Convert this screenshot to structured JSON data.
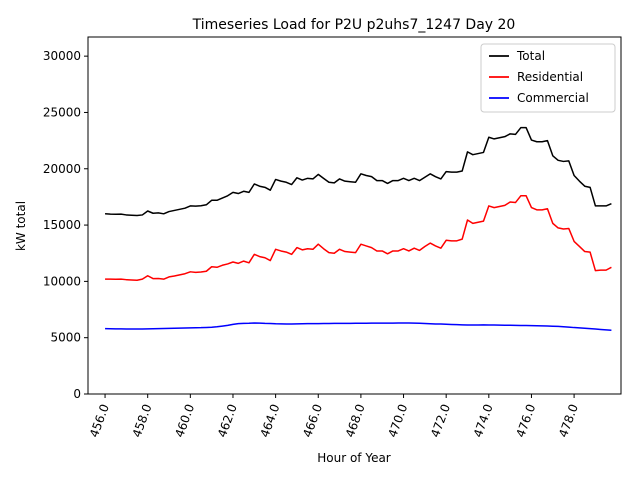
{
  "chart_data": {
    "type": "line",
    "title": "Timeseries Load for P2U p2uhs7_1247  Day 20",
    "xlabel": "Hour of Year",
    "ylabel": "kW total",
    "xlim": [
      455.2,
      480.2
    ],
    "ylim": [
      0,
      31700
    ],
    "x_start": 456.0,
    "x_step": 0.25,
    "x_ticks": [
      456,
      458,
      460,
      462,
      464,
      466,
      468,
      470,
      472,
      474,
      476,
      478
    ],
    "x_tick_labels": [
      "456.0",
      "458.0",
      "460.0",
      "462.0",
      "464.0",
      "466.0",
      "468.0",
      "470.0",
      "472.0",
      "474.0",
      "476.0",
      "478.0"
    ],
    "y_ticks": [
      0,
      5000,
      10000,
      15000,
      20000,
      25000,
      30000
    ],
    "y_tick_labels": [
      "0",
      "5000",
      "10000",
      "15000",
      "20000",
      "25000",
      "30000"
    ],
    "legend_position": "top-right",
    "series": [
      {
        "name": "Total",
        "color": "#000000",
        "values": [
          16000,
          15970,
          15960,
          15970,
          15900,
          15870,
          15850,
          15900,
          16250,
          16050,
          16080,
          16000,
          16200,
          16300,
          16400,
          16500,
          16700,
          16680,
          16720,
          16800,
          17200,
          17200,
          17400,
          17600,
          17900,
          17800,
          18000,
          17900,
          18650,
          18450,
          18350,
          18100,
          19050,
          18900,
          18800,
          18600,
          19200,
          19000,
          19150,
          19100,
          19500,
          19150,
          18800,
          18750,
          19100,
          18900,
          18850,
          18800,
          19550,
          19400,
          19300,
          18950,
          18950,
          18700,
          18950,
          18950,
          19150,
          18950,
          19150,
          18950,
          19250,
          19550,
          19300,
          19100,
          19750,
          19700,
          19700,
          19800,
          21500,
          21250,
          21350,
          21450,
          22800,
          22650,
          22750,
          22850,
          23100,
          23050,
          23650,
          23650,
          22550,
          22400,
          22400,
          22500,
          21150,
          20750,
          20650,
          20700,
          19400,
          18900,
          18450,
          18350,
          16700,
          16700,
          16700,
          16900
        ]
      },
      {
        "name": "Residential",
        "color": "#ff0000",
        "values": [
          10200,
          10200,
          10190,
          10200,
          10150,
          10120,
          10100,
          10200,
          10500,
          10250,
          10260,
          10200,
          10400,
          10480,
          10580,
          10680,
          10850,
          10800,
          10830,
          10900,
          11300,
          11250,
          11430,
          11550,
          11720,
          11600,
          11800,
          11650,
          12400,
          12200,
          12100,
          11850,
          12850,
          12700,
          12600,
          12400,
          13000,
          12800,
          12900,
          12850,
          13300,
          12900,
          12550,
          12500,
          12850,
          12650,
          12600,
          12550,
          13300,
          13150,
          13000,
          12700,
          12700,
          12450,
          12700,
          12700,
          12900,
          12700,
          12950,
          12750,
          13100,
          13400,
          13150,
          12950,
          13650,
          13600,
          13600,
          13750,
          15450,
          15150,
          15250,
          15350,
          16700,
          16550,
          16650,
          16750,
          17050,
          17000,
          17600,
          17600,
          16550,
          16350,
          16350,
          16450,
          15150,
          14750,
          14650,
          14700,
          13550,
          13100,
          12650,
          12600,
          10950,
          11000,
          11000,
          11250
        ]
      },
      {
        "name": "Commercial",
        "color": "#0000ff",
        "values": [
          5800,
          5790,
          5780,
          5780,
          5770,
          5770,
          5770,
          5770,
          5780,
          5790,
          5800,
          5820,
          5830,
          5840,
          5850,
          5860,
          5870,
          5880,
          5890,
          5910,
          5930,
          5970,
          6030,
          6090,
          6180,
          6250,
          6270,
          6280,
          6300,
          6290,
          6270,
          6260,
          6240,
          6230,
          6220,
          6220,
          6230,
          6240,
          6250,
          6250,
          6250,
          6260,
          6260,
          6270,
          6270,
          6270,
          6270,
          6280,
          6280,
          6280,
          6290,
          6290,
          6290,
          6290,
          6290,
          6300,
          6300,
          6300,
          6290,
          6280,
          6260,
          6240,
          6220,
          6210,
          6190,
          6170,
          6160,
          6140,
          6130,
          6130,
          6130,
          6140,
          6130,
          6130,
          6120,
          6110,
          6100,
          6090,
          6080,
          6080,
          6070,
          6060,
          6050,
          6040,
          6020,
          6000,
          5970,
          5940,
          5900,
          5870,
          5840,
          5800,
          5770,
          5730,
          5690,
          5660
        ]
      }
    ]
  }
}
